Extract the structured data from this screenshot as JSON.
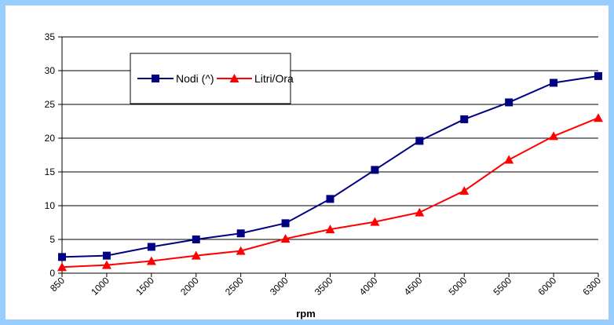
{
  "chart_data": {
    "type": "line",
    "title": "",
    "xlabel": "rpm",
    "ylabel": "",
    "categories": [
      "850",
      "1000",
      "1500",
      "2000",
      "2500",
      "3000",
      "3500",
      "4000",
      "4500",
      "5000",
      "5500",
      "6000",
      "6300"
    ],
    "ylim": [
      0,
      35
    ],
    "yticks": [
      0,
      5,
      10,
      15,
      20,
      25,
      30,
      35
    ],
    "grid": true,
    "legend_position": "top-left",
    "series": [
      {
        "name": "Nodi (^)",
        "color": "#000080",
        "marker": "square",
        "values": [
          2.4,
          2.6,
          3.9,
          5.0,
          5.9,
          7.4,
          11.0,
          15.3,
          19.6,
          22.8,
          25.3,
          28.2,
          29.2
        ]
      },
      {
        "name": "Litri/Ora",
        "color": "#ff0000",
        "marker": "triangle",
        "values": [
          0.9,
          1.2,
          1.8,
          2.6,
          3.3,
          5.1,
          6.5,
          7.6,
          9.0,
          12.2,
          16.8,
          20.3,
          23.0
        ]
      }
    ]
  },
  "colors": {
    "background": "#99ccff",
    "plot": "#ffffff"
  }
}
